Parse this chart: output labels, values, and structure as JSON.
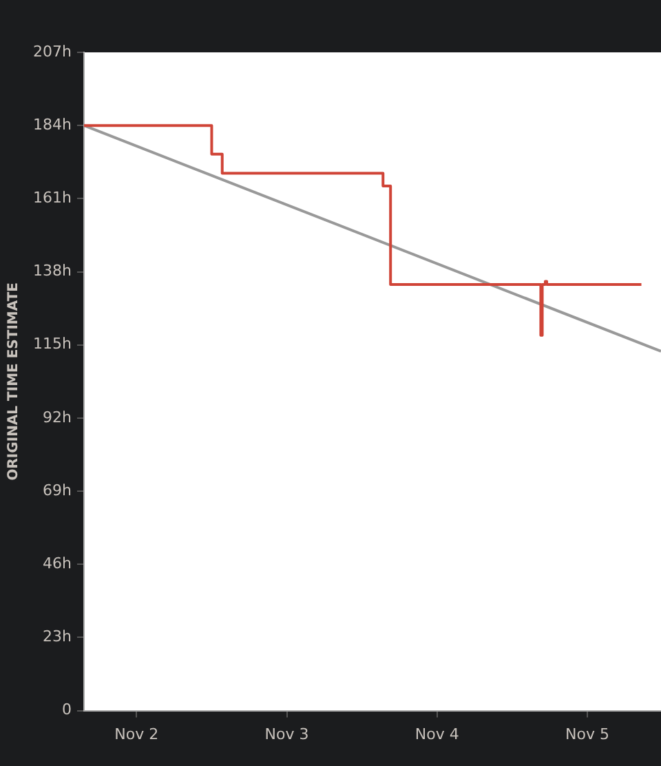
{
  "chart_data": {
    "type": "step",
    "ylabel": "ORIGINAL TIME ESTIMATE",
    "series": [
      {
        "type": "step",
        "color": "#d04437",
        "x": [
          "--11-01T15:36",
          "--11-02T12:00",
          "--11-02T13:41",
          "--11-03T15:22",
          "--11-03T16:34",
          "--11-04T16:34",
          "--11-04T16:48",
          "--11-04T17:17",
          "--11-04T17:31",
          "--11-05T08:38"
        ],
        "values": [
          184,
          175,
          169,
          165,
          134,
          118,
          134,
          135,
          134,
          134
        ]
      },
      {
        "type": "line",
        "color": "#999999",
        "x": [
          "--11-01T15:36",
          "--11-05T11:46"
        ],
        "values": [
          184,
          113
        ]
      }
    ],
    "xlim": [
      "--11-01T15:36",
      "--11-05T11:46"
    ],
    "xticks": [
      {
        "value": "--11-02",
        "label": "Nov 2"
      },
      {
        "value": "--11-03",
        "label": "Nov 3"
      },
      {
        "value": "--11-04",
        "label": "Nov 4"
      },
      {
        "value": "--11-05",
        "label": "Nov 5"
      }
    ],
    "ylim": [
      0,
      207
    ],
    "yticks": [
      {
        "value": 0,
        "label": "0"
      },
      {
        "value": 23,
        "label": "23h"
      },
      {
        "value": 46,
        "label": "46h"
      },
      {
        "value": 69,
        "label": "69h"
      },
      {
        "value": 92,
        "label": "92h"
      },
      {
        "value": 115,
        "label": "115h"
      },
      {
        "value": 138,
        "label": "138h"
      },
      {
        "value": 161,
        "label": "161h"
      },
      {
        "value": 184,
        "label": "184h"
      },
      {
        "value": 207,
        "label": "207h"
      }
    ],
    "grid": false,
    "legend": false,
    "marker": "none",
    "line_style": "solid"
  }
}
